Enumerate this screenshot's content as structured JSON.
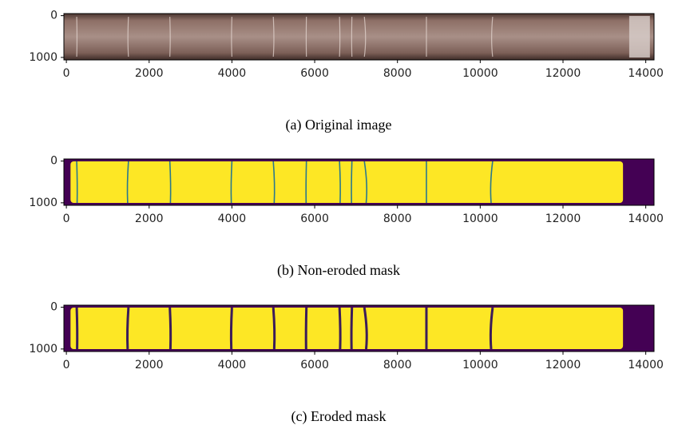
{
  "chart_data": [
    {
      "type": "image",
      "caption": "(a) Original image",
      "xlim": [
        -60,
        14200
      ],
      "ylim": [
        1060,
        -50
      ],
      "xticks": [
        0,
        2000,
        4000,
        6000,
        8000,
        10000,
        12000,
        14000
      ],
      "yticks": [
        0,
        1000
      ]
    },
    {
      "type": "image",
      "caption": "(b) Non-eroded mask",
      "xlim": [
        -60,
        14200
      ],
      "ylim": [
        1060,
        -50
      ],
      "xticks": [
        0,
        2000,
        4000,
        6000,
        8000,
        10000,
        12000,
        14000
      ],
      "yticks": [
        0,
        1000
      ]
    },
    {
      "type": "image",
      "caption": "(c) Eroded mask",
      "xlim": [
        -60,
        14200
      ],
      "ylim": [
        1060,
        -50
      ],
      "xticks": [
        0,
        2000,
        4000,
        6000,
        8000,
        10000,
        12000,
        14000
      ],
      "yticks": [
        0,
        1000
      ]
    }
  ]
}
